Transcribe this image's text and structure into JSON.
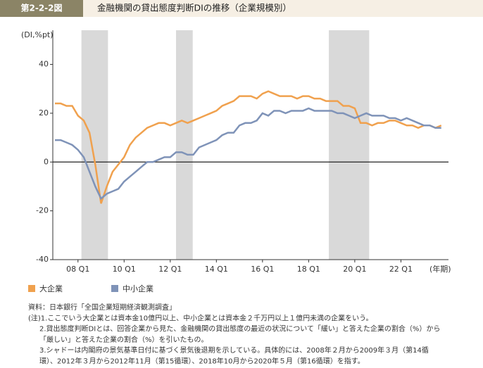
{
  "chart_data": {
    "type": "line",
    "figure_label": "第2-2-2図",
    "title": "金融機関の貸出態度判断DIの推移（企業規模別）",
    "y_label": "(DI,%pt)",
    "x_label": "(年期)",
    "categories": [
      null,
      null,
      null,
      null,
      "08 Q1",
      null,
      null,
      null,
      null,
      null,
      null,
      null,
      "10 Q1",
      null,
      null,
      null,
      null,
      null,
      null,
      null,
      "12 Q1",
      null,
      null,
      null,
      null,
      null,
      null,
      null,
      "14 Q1",
      null,
      null,
      null,
      null,
      null,
      null,
      null,
      "16 Q1",
      null,
      null,
      null,
      null,
      null,
      null,
      null,
      "18 Q1",
      null,
      null,
      null,
      null,
      null,
      null,
      null,
      "20 Q1",
      null,
      null,
      null,
      null,
      null,
      null,
      null,
      "22 Q1",
      null,
      null,
      null,
      null,
      null,
      null,
      null
    ],
    "series": [
      {
        "name": "大企業",
        "color": "#f0a14e",
        "values": [
          24,
          24,
          23,
          23,
          19,
          17,
          12,
          -1,
          -17,
          -10,
          -4,
          -1,
          2,
          7,
          10,
          12,
          14,
          15,
          16,
          16,
          15,
          16,
          17,
          16,
          17,
          18,
          19,
          20,
          21,
          23,
          24,
          25,
          27,
          27,
          27,
          26,
          28,
          29,
          28,
          27,
          27,
          27,
          26,
          27,
          27,
          26,
          26,
          25,
          25,
          25,
          23,
          23,
          22,
          16,
          16,
          15,
          16,
          16,
          17,
          17,
          16,
          15,
          15,
          14,
          15,
          15,
          14,
          15
        ]
      },
      {
        "name": "中小企業",
        "color": "#7f93b8",
        "values": [
          9,
          9,
          8,
          7,
          5,
          2,
          -4,
          -10,
          -15,
          -13,
          -12,
          -11,
          -8,
          -6,
          -4,
          -2,
          0,
          0,
          1,
          2,
          2,
          4,
          4,
          3,
          3,
          6,
          7,
          8,
          9,
          11,
          12,
          12,
          15,
          16,
          16,
          17,
          20,
          19,
          21,
          21,
          20,
          21,
          21,
          21,
          22,
          21,
          21,
          21,
          21,
          20,
          20,
          19,
          18,
          19,
          20,
          19,
          19,
          19,
          18,
          18,
          17,
          18,
          17,
          16,
          15,
          15,
          14,
          14
        ]
      }
    ],
    "shaded_periods": [
      [
        4.6,
        9.2
      ],
      [
        21.0,
        23.9
      ],
      [
        47.5,
        54.5
      ]
    ],
    "ylim": [
      -40,
      54
    ],
    "yticks": [
      -40,
      -20,
      0,
      20,
      40
    ],
    "notes": [
      "資料：日本銀行「全国企業短期経済観測調査」",
      "(注)1.ここでいう大企業とは資本金10億円以上、中小企業とは資本金２千万円以上１億円未満の企業をいう。",
      "2.貸出態度判断DIとは、回答企業から見た、金融機関の貸出態度の最近の状況について「緩い」と答えた企業の割合（%）から",
      "「厳しい」と答えた企業の割合（%）を引いたもの。",
      "3.シャドーは内閣府の景気基準日付に基づく景気後退期を示している。具体的には、2008年２月から2009年３月（第14循",
      "環）、2012年３月から2012年11月（第15循環）、2018年10月から2020年５月（第16循環）を指す。"
    ]
  }
}
